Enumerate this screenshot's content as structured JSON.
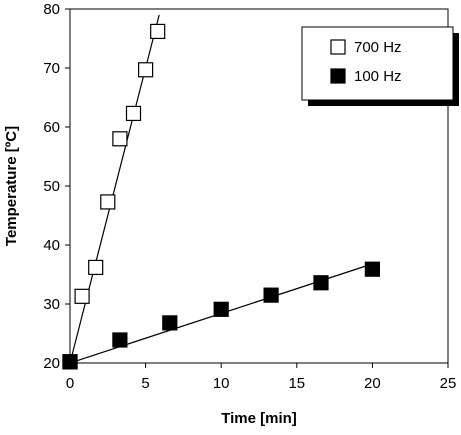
{
  "chart_data": {
    "type": "scatter",
    "title": "",
    "xlabel": "Time [min]",
    "ylabel": "Temperature [ºC]",
    "xlim": [
      0,
      25
    ],
    "ylim": [
      20,
      80
    ],
    "xticks": [
      0,
      5,
      10,
      15,
      20,
      25
    ],
    "yticks": [
      20,
      30,
      40,
      50,
      60,
      70,
      80
    ],
    "xtick_labels": [
      "0",
      "5",
      "10",
      "15",
      "20",
      "25"
    ],
    "ytick_labels": [
      "20",
      "30",
      "40",
      "50",
      "60",
      "70",
      "80"
    ],
    "grid": false,
    "legend_position": "top-right",
    "series": [
      {
        "name": "700 Hz",
        "marker": "open-square",
        "color": "#000000",
        "x": [
          0,
          0.8,
          1.7,
          2.5,
          3.3,
          4.2,
          5.0,
          5.8
        ],
        "y": [
          20.2,
          31.3,
          36.2,
          47.3,
          58.0,
          62.3,
          69.7,
          76.2
        ],
        "fit_line": {
          "x": [
            0,
            5.9
          ],
          "y": [
            20,
            79
          ]
        }
      },
      {
        "name": "100 Hz",
        "marker": "filled-square",
        "color": "#000000",
        "x": [
          0,
          3.3,
          6.6,
          10.0,
          13.3,
          16.6,
          20.0
        ],
        "y": [
          20.2,
          23.9,
          26.8,
          29.1,
          31.5,
          33.6,
          35.9
        ],
        "fit_line": {
          "x": [
            0,
            20
          ],
          "y": [
            20,
            36.8
          ]
        }
      }
    ]
  }
}
